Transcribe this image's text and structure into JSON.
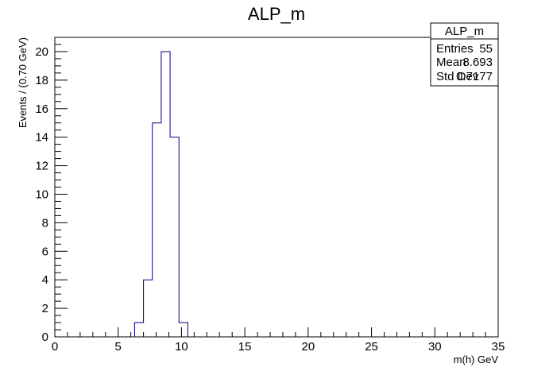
{
  "chart_data": {
    "type": "bar",
    "title": "ALP_m",
    "xlabel": "m(h) GeV",
    "ylabel": "Events / (0.70 GeV)",
    "xlim": [
      0,
      35
    ],
    "ylim": [
      0,
      21
    ],
    "bin_width": 0.7,
    "bins": [
      {
        "x_low": 6.3,
        "x_high": 7.0,
        "value": 1
      },
      {
        "x_low": 7.0,
        "x_high": 7.7,
        "value": 4
      },
      {
        "x_low": 7.7,
        "x_high": 8.4,
        "value": 15
      },
      {
        "x_low": 8.4,
        "x_high": 9.1,
        "value": 20
      },
      {
        "x_low": 9.1,
        "x_high": 9.8,
        "value": 14
      },
      {
        "x_low": 9.8,
        "x_high": 10.5,
        "value": 1
      }
    ],
    "x_ticks": [
      {
        "value": 0,
        "label": "0"
      },
      {
        "value": 5,
        "label": "5"
      },
      {
        "value": 10,
        "label": "10"
      },
      {
        "value": 15,
        "label": "15"
      },
      {
        "value": 20,
        "label": "20"
      },
      {
        "value": 25,
        "label": "25"
      },
      {
        "value": 30,
        "label": "30"
      },
      {
        "value": 35,
        "label": "35"
      }
    ],
    "y_ticks": [
      {
        "value": 0,
        "label": "0"
      },
      {
        "value": 2,
        "label": "2"
      },
      {
        "value": 4,
        "label": "4"
      },
      {
        "value": 6,
        "label": "6"
      },
      {
        "value": 8,
        "label": "8"
      },
      {
        "value": 10,
        "label": "10"
      },
      {
        "value": 12,
        "label": "12"
      },
      {
        "value": 14,
        "label": "14"
      },
      {
        "value": 16,
        "label": "16"
      },
      {
        "value": 18,
        "label": "18"
      },
      {
        "value": 20,
        "label": "20"
      }
    ],
    "line_color": "#000080",
    "grid": false,
    "legend": "none"
  },
  "stats_box": {
    "title": "ALP_m",
    "rows": [
      {
        "label": "Entries",
        "value": "55"
      },
      {
        "label": "Mean",
        "value": "8.693"
      },
      {
        "label": "Std Dev",
        "value": "0.7177"
      }
    ]
  }
}
